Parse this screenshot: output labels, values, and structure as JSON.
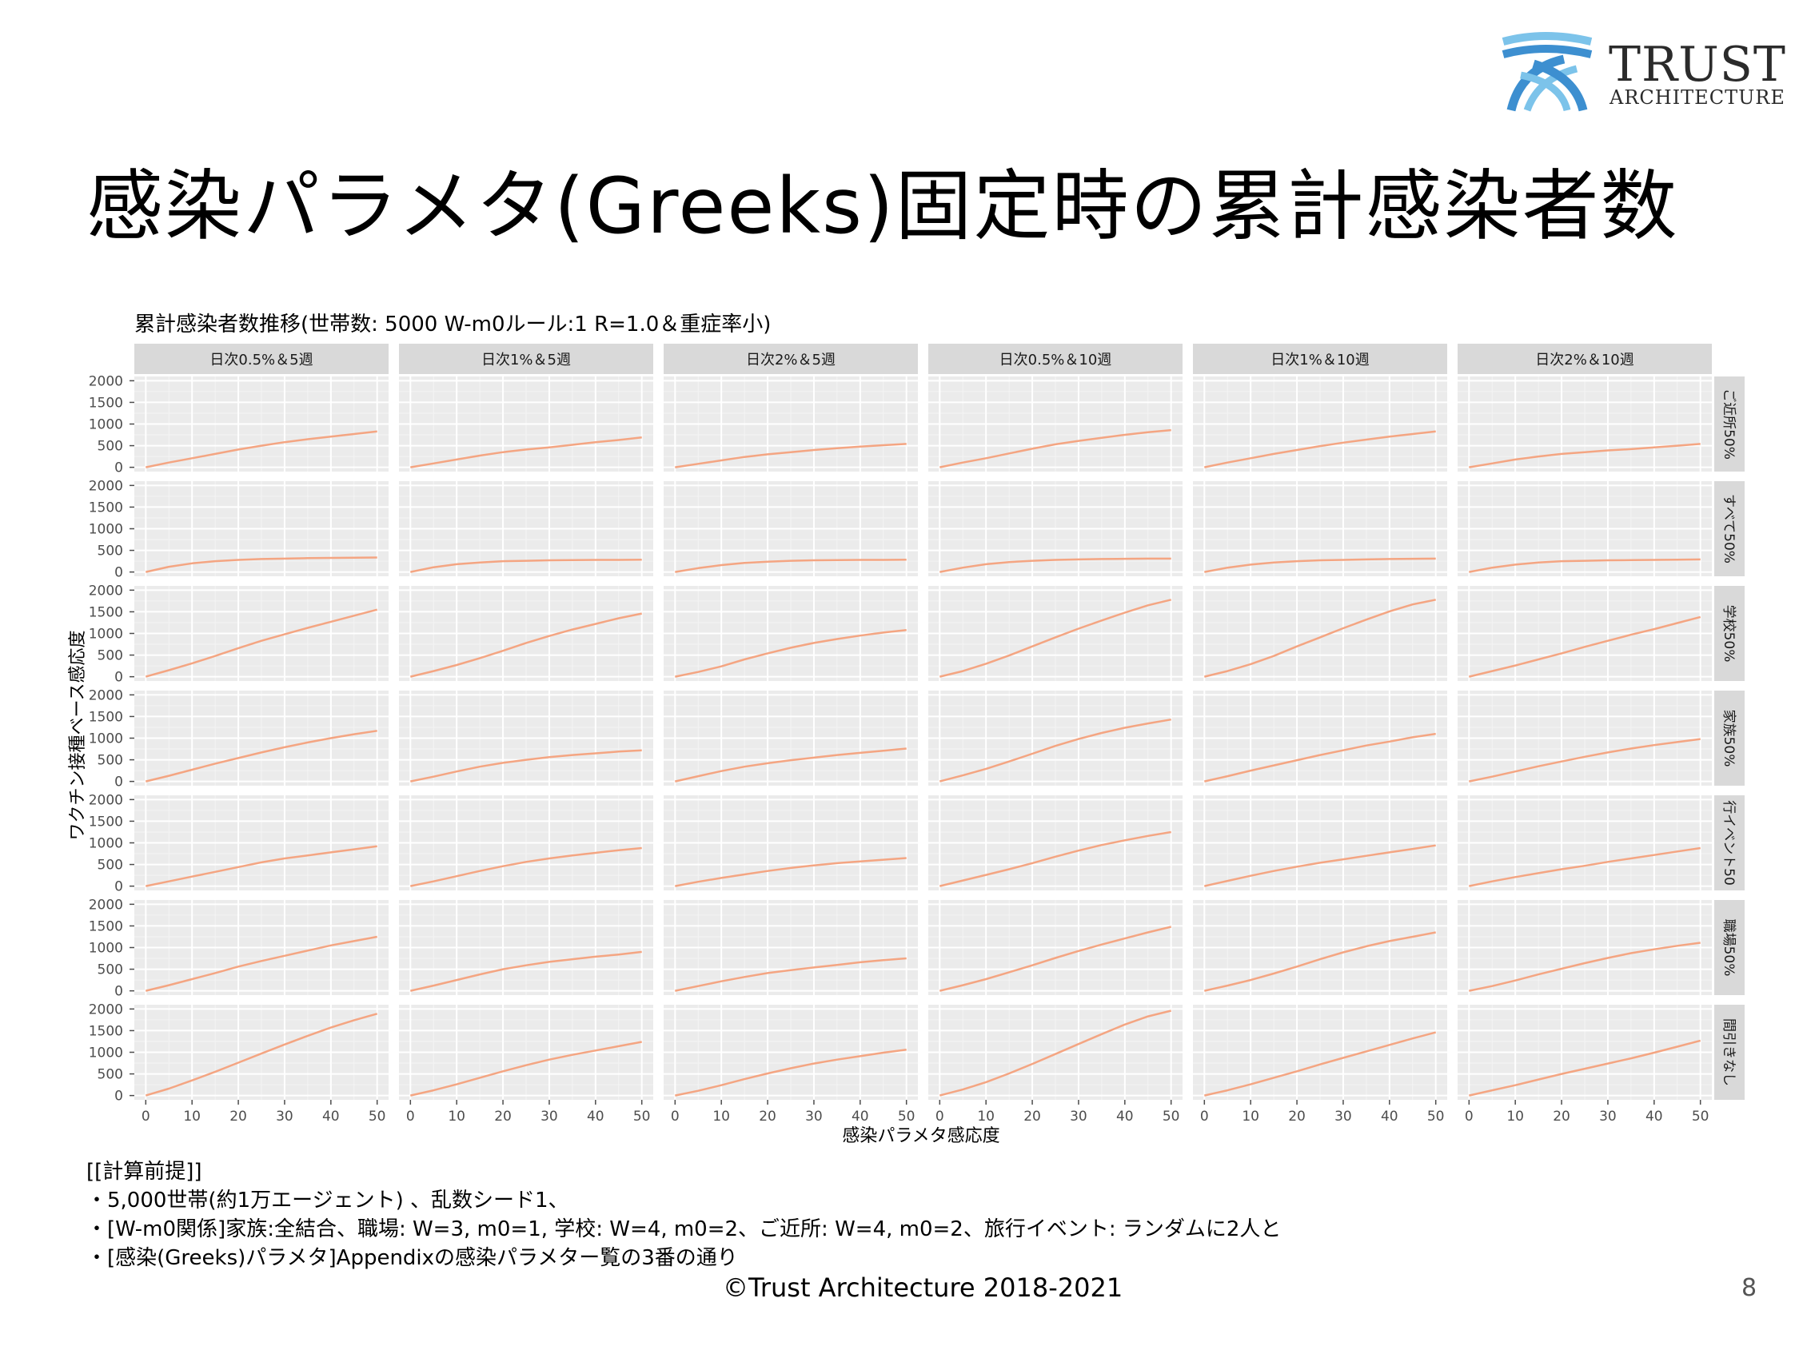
{
  "slide": {
    "title": "感染パラメタ(Greeks)固定時の累計感染者数",
    "logo_text_main": "TRUST",
    "logo_text_sub": "ARCHITECTURE",
    "copyright": "©Trust Architecture 2018-2021",
    "page_number": "8",
    "notes": [
      "[[計算前提]]",
      "・5,000世帯(約1万エージェント) 、乱数シード1、",
      "・[W-m0関係]家族:全結合、職場: W=3, m0=1, 学校: W=4, m0=2、ご近所: W=4, m0=2、旅行イベント: ランダムに2人と",
      "・[感染(Greeks)パラメタ]Appendixの感染パラメター覧の3番の通り"
    ]
  },
  "colors": {
    "line": "#f4a582",
    "panel_bg": "#ebebeb",
    "strip_bg": "#d9d9d9",
    "logo_blue": "#3d8fd0",
    "logo_light": "#7cc3ea"
  },
  "chart_data": {
    "type": "line",
    "title": "累計感染者数推移(世帯数: 5000 W-m0ルール:1 R=1.0＆重症率小)",
    "xlabel": "感染パラメタ感応度",
    "ylabel": "ワクチン接種ベース感応度",
    "xlim": [
      0,
      50
    ],
    "ylim": [
      0,
      2000
    ],
    "x_ticks": [
      "0",
      "10",
      "20",
      "30",
      "40",
      "50"
    ],
    "y_ticks": [
      "0",
      "500",
      "1000",
      "1500",
      "2000"
    ],
    "grid": true,
    "legend": "none",
    "col_facets": [
      "日次0.5%＆5週",
      "日次1%＆5週",
      "日次2%＆5週",
      "日次0.5%＆10週",
      "日次1%＆10週",
      "日次2%＆10週"
    ],
    "row_facets": [
      "ご近所50%",
      "すべて50%",
      "学校50%",
      "家族50%",
      "行イベント50",
      "職場50%",
      "間引きなし"
    ],
    "x": [
      0,
      5,
      10,
      15,
      20,
      25,
      30,
      35,
      40,
      45,
      50
    ],
    "panels": [
      [
        [
          0,
          110,
          210,
          310,
          410,
          500,
          580,
          650,
          710,
          770,
          830
        ],
        [
          0,
          90,
          180,
          270,
          350,
          410,
          460,
          520,
          580,
          630,
          690
        ],
        [
          0,
          80,
          160,
          240,
          300,
          350,
          400,
          440,
          480,
          510,
          540
        ],
        [
          0,
          110,
          210,
          320,
          430,
          530,
          610,
          680,
          750,
          810,
          860
        ],
        [
          0,
          110,
          210,
          310,
          400,
          490,
          570,
          640,
          710,
          770,
          830
        ],
        [
          0,
          90,
          180,
          250,
          310,
          350,
          390,
          420,
          460,
          500,
          540
        ]
      ],
      [
        [
          0,
          120,
          200,
          250,
          280,
          300,
          310,
          320,
          325,
          330,
          335
        ],
        [
          0,
          110,
          180,
          220,
          250,
          260,
          270,
          275,
          280,
          280,
          285
        ],
        [
          0,
          90,
          160,
          210,
          240,
          260,
          270,
          275,
          280,
          280,
          285
        ],
        [
          0,
          100,
          180,
          230,
          260,
          280,
          290,
          300,
          305,
          310,
          310
        ],
        [
          0,
          100,
          170,
          220,
          250,
          270,
          280,
          290,
          300,
          305,
          310
        ],
        [
          0,
          100,
          170,
          220,
          250,
          260,
          270,
          275,
          280,
          285,
          290
        ]
      ],
      [
        [
          0,
          150,
          310,
          480,
          660,
          830,
          980,
          1130,
          1270,
          1410,
          1550
        ],
        [
          0,
          130,
          270,
          430,
          600,
          780,
          940,
          1090,
          1220,
          1350,
          1460
        ],
        [
          0,
          110,
          240,
          400,
          540,
          670,
          780,
          870,
          950,
          1020,
          1080
        ],
        [
          0,
          130,
          300,
          490,
          700,
          910,
          1110,
          1300,
          1480,
          1650,
          1780
        ],
        [
          0,
          130,
          290,
          480,
          700,
          910,
          1120,
          1320,
          1510,
          1670,
          1780
        ],
        [
          0,
          130,
          260,
          400,
          540,
          690,
          830,
          970,
          1100,
          1240,
          1380
        ]
      ],
      [
        [
          0,
          130,
          270,
          410,
          540,
          670,
          790,
          900,
          1000,
          1090,
          1170
        ],
        [
          0,
          110,
          230,
          340,
          430,
          500,
          560,
          610,
          650,
          690,
          720
        ],
        [
          0,
          120,
          240,
          340,
          420,
          490,
          550,
          610,
          660,
          710,
          760
        ],
        [
          0,
          140,
          290,
          460,
          640,
          820,
          980,
          1120,
          1240,
          1340,
          1430
        ],
        [
          0,
          120,
          250,
          370,
          490,
          610,
          720,
          830,
          920,
          1020,
          1100
        ],
        [
          0,
          110,
          230,
          350,
          460,
          570,
          670,
          760,
          840,
          910,
          980
        ]
      ],
      [
        [
          0,
          110,
          220,
          330,
          440,
          550,
          640,
          710,
          780,
          850,
          920
        ],
        [
          0,
          110,
          230,
          350,
          460,
          560,
          640,
          710,
          770,
          830,
          880
        ],
        [
          0,
          100,
          190,
          270,
          350,
          420,
          480,
          530,
          570,
          610,
          650
        ],
        [
          0,
          130,
          260,
          390,
          530,
          680,
          820,
          950,
          1060,
          1160,
          1250
        ],
        [
          0,
          120,
          240,
          350,
          450,
          540,
          620,
          700,
          780,
          860,
          940
        ],
        [
          0,
          110,
          210,
          300,
          390,
          470,
          560,
          640,
          720,
          800,
          880
        ]
      ],
      [
        [
          0,
          130,
          270,
          410,
          560,
          690,
          810,
          930,
          1050,
          1150,
          1250
        ],
        [
          0,
          120,
          250,
          380,
          500,
          590,
          670,
          730,
          790,
          840,
          900
        ],
        [
          0,
          110,
          220,
          320,
          410,
          480,
          540,
          600,
          660,
          710,
          750
        ],
        [
          0,
          130,
          270,
          430,
          590,
          760,
          920,
          1070,
          1210,
          1350,
          1480
        ],
        [
          0,
          120,
          250,
          400,
          560,
          730,
          890,
          1030,
          1150,
          1250,
          1350
        ],
        [
          0,
          110,
          240,
          380,
          510,
          640,
          760,
          870,
          960,
          1040,
          1110
        ]
      ],
      [
        [
          0,
          160,
          350,
          550,
          760,
          970,
          1180,
          1380,
          1570,
          1740,
          1890
        ],
        [
          0,
          120,
          260,
          410,
          560,
          700,
          830,
          940,
          1040,
          1140,
          1240
        ],
        [
          0,
          110,
          240,
          380,
          510,
          630,
          740,
          830,
          910,
          990,
          1060
        ],
        [
          0,
          140,
          310,
          510,
          730,
          960,
          1190,
          1420,
          1640,
          1830,
          1960
        ],
        [
          0,
          120,
          260,
          410,
          560,
          720,
          870,
          1020,
          1170,
          1320,
          1460
        ],
        [
          0,
          120,
          240,
          370,
          500,
          620,
          740,
          860,
          990,
          1130,
          1270
        ]
      ]
    ]
  }
}
